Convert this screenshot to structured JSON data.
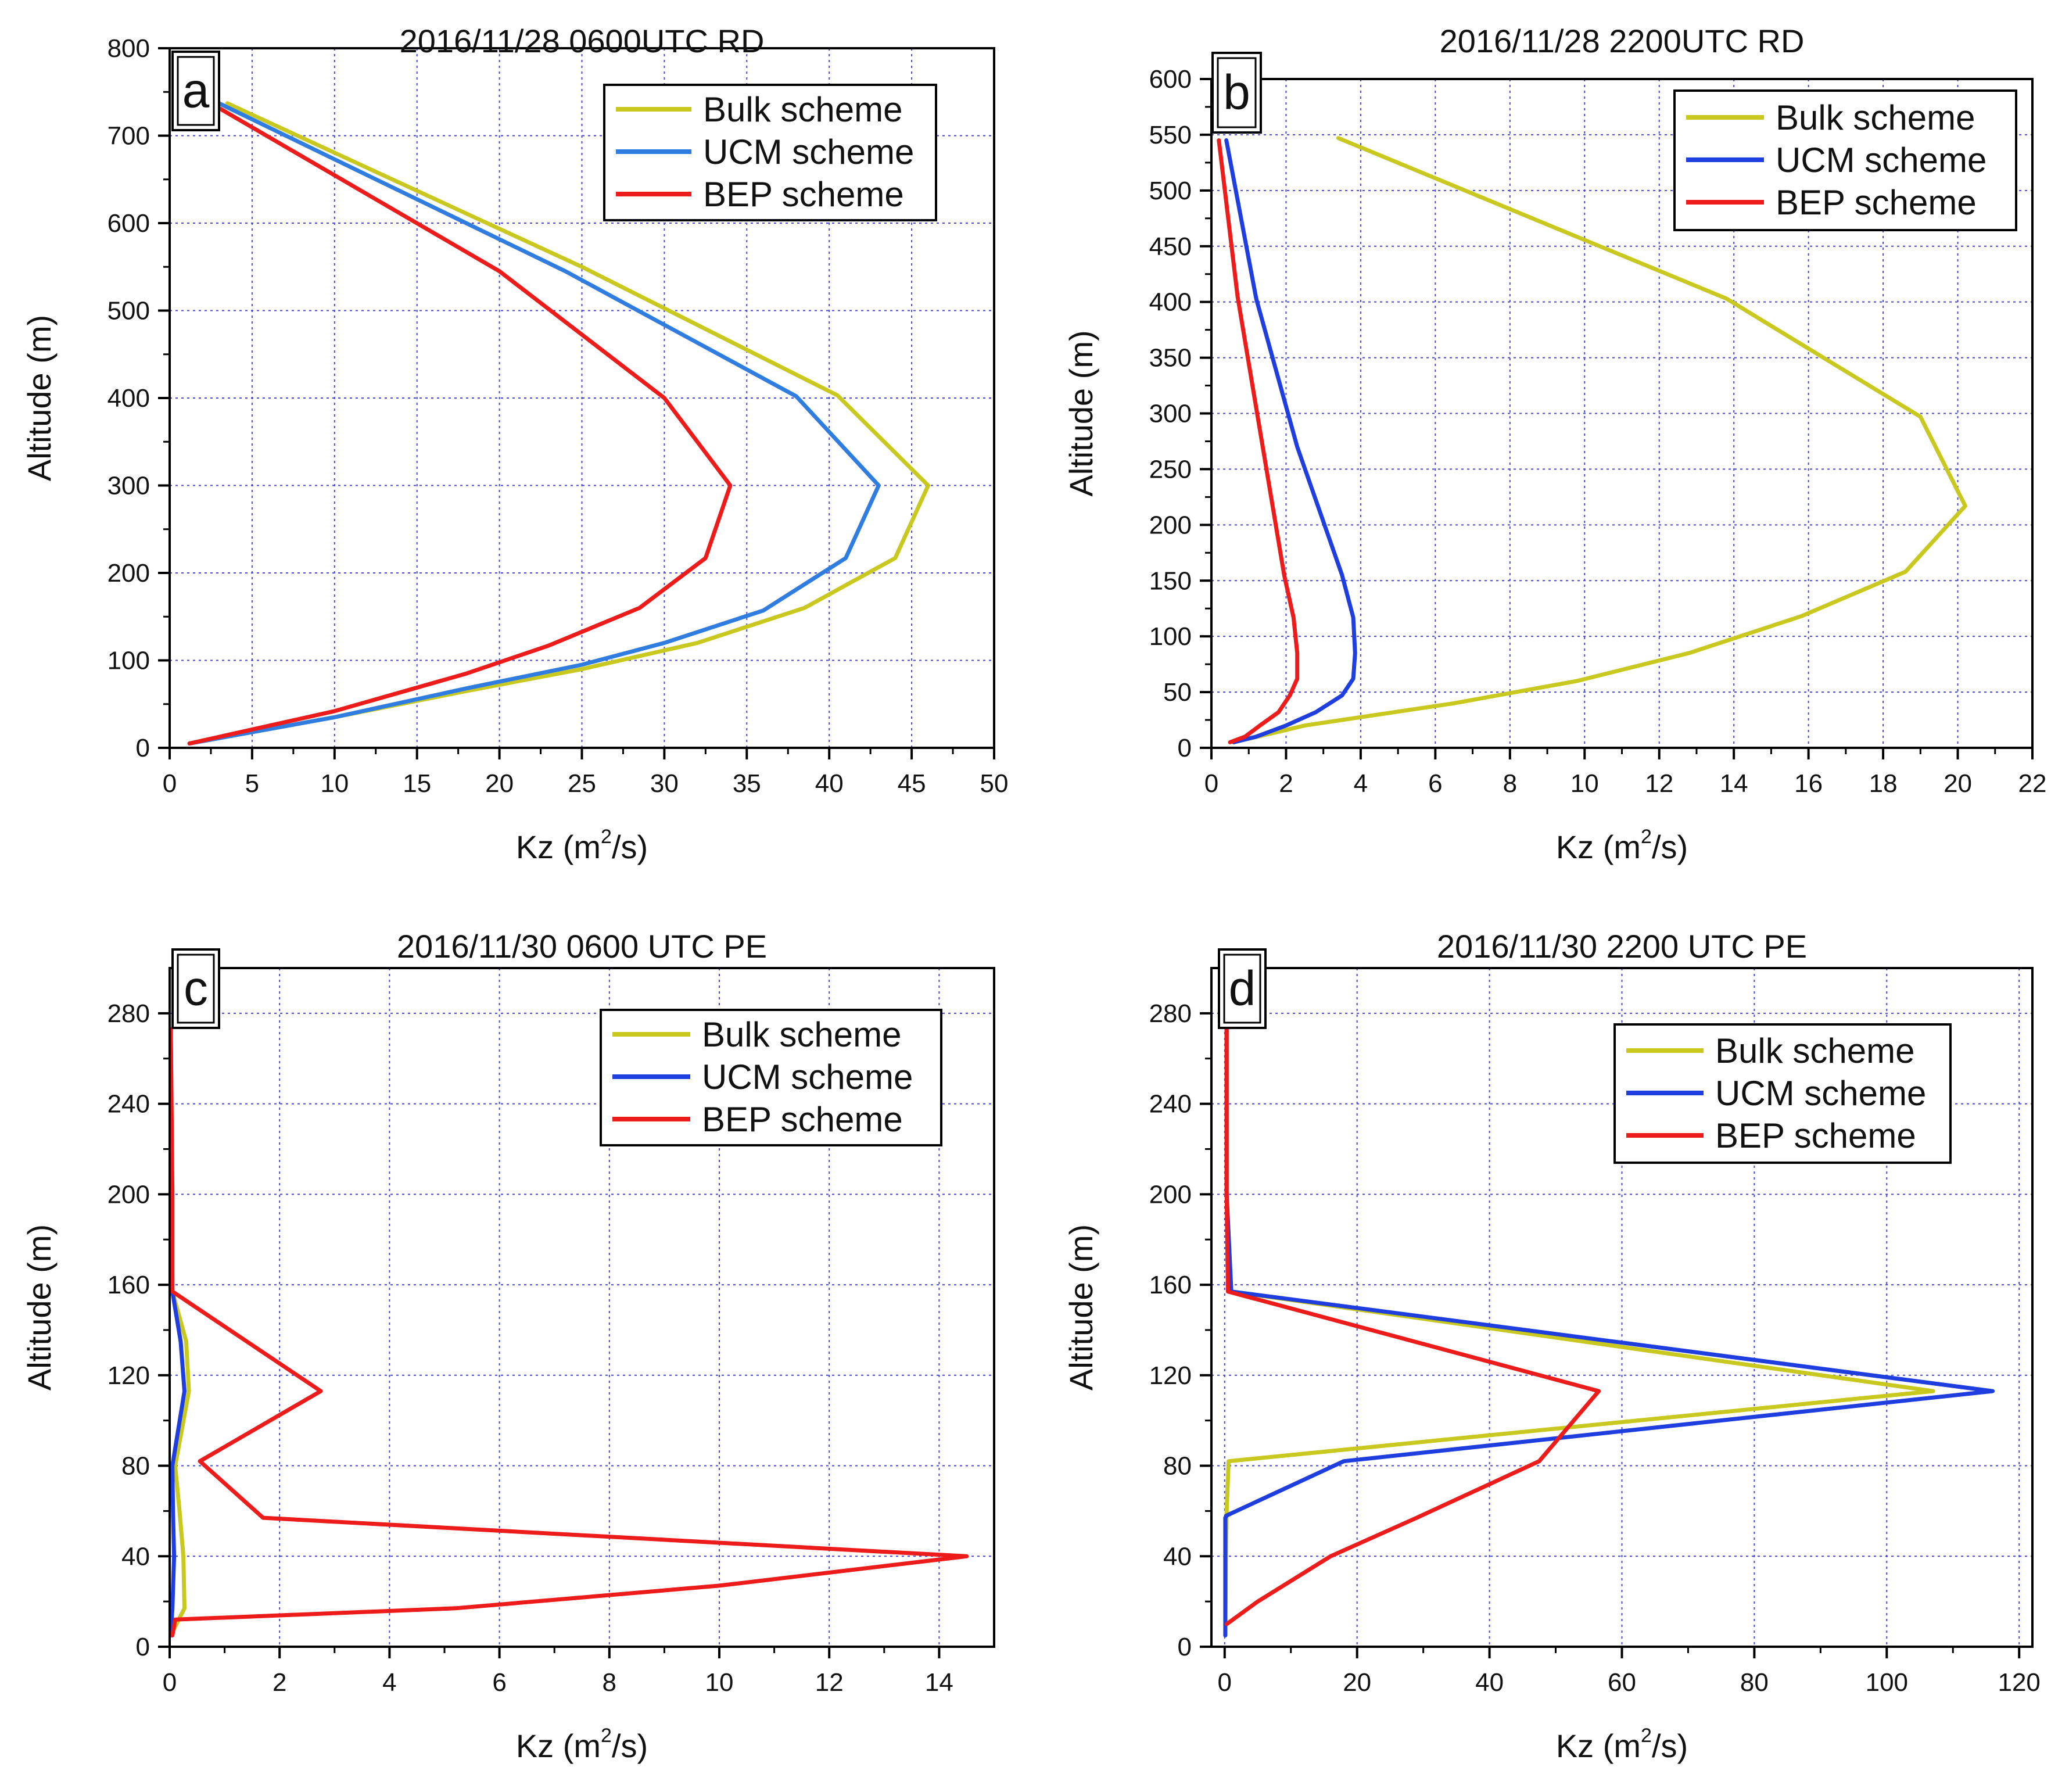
{
  "colors": {
    "bulk": "#c8c81e",
    "ucm_ab": "#2f7de0",
    "ucm_cd": "#1f3ee0",
    "bep": "#ee1b1b",
    "grid": "#4646d8"
  },
  "chart_data": [
    {
      "type": "line",
      "letter": "a",
      "title": "2016/11/28 0600UTC RD",
      "xlabel": "Kz (m",
      "xlabel_sup": "2",
      "xlabel_tail": "/s)",
      "ylabel": "Altitude (m)",
      "xlim": [
        0,
        50
      ],
      "ylim": [
        0,
        800
      ],
      "xticks": [
        0,
        5,
        10,
        15,
        20,
        25,
        30,
        35,
        40,
        45,
        50
      ],
      "yticks": [
        0,
        100,
        200,
        300,
        400,
        500,
        600,
        700,
        800
      ],
      "xtick_labels": [
        "0",
        "5",
        "10",
        "15",
        "20",
        "25",
        "30",
        "35",
        "40",
        "45",
        "50"
      ],
      "ytick_labels": [
        "0",
        "100",
        "200",
        "300",
        "400",
        "500",
        "600",
        "700",
        "800"
      ],
      "grid": true,
      "legend_position": "top-right",
      "series": [
        {
          "name": "Bulk scheme",
          "color_key": "bulk",
          "x": [
            1.2,
            10,
            18,
            25,
            32,
            38.5,
            44,
            46,
            40.5,
            25,
            3.5
          ],
          "y": [
            5,
            35,
            65,
            90,
            120,
            160,
            217,
            300,
            403,
            550,
            737
          ]
        },
        {
          "name": "UCM scheme",
          "color_key": "ucm_ab",
          "x": [
            1.2,
            10,
            18,
            25,
            30,
            36,
            41,
            43,
            38,
            24,
            3
          ],
          "y": [
            5,
            35,
            68,
            95,
            120,
            157,
            217,
            300,
            402,
            545,
            737
          ]
        },
        {
          "name": "BEP scheme",
          "color_key": "bep",
          "x": [
            1.2,
            10,
            18,
            23,
            28.5,
            32.5,
            34,
            30,
            20,
            2.5
          ],
          "y": [
            5,
            42,
            85,
            117,
            160,
            217,
            300,
            400,
            545,
            737
          ]
        }
      ]
    },
    {
      "type": "line",
      "letter": "b",
      "title": "2016/11/28 2200UTC RD",
      "xlabel": "Kz (m",
      "xlabel_sup": "2",
      "xlabel_tail": "/s)",
      "ylabel": "Altitude (m)",
      "xlim": [
        0,
        22
      ],
      "ylim": [
        0,
        600
      ],
      "xticks": [
        0,
        2,
        4,
        6,
        8,
        10,
        12,
        14,
        16,
        18,
        20,
        22
      ],
      "yticks": [
        0,
        50,
        100,
        150,
        200,
        250,
        300,
        350,
        400,
        450,
        500,
        550,
        600
      ],
      "xtick_labels": [
        "0",
        "2",
        "4",
        "6",
        "8",
        "10",
        "12",
        "14",
        "16",
        "18",
        "20",
        "22"
      ],
      "ytick_labels": [
        "0",
        "50",
        "100",
        "150",
        "200",
        "250",
        "300",
        "350",
        "400",
        "450",
        "500",
        "550",
        "600"
      ],
      "grid": true,
      "legend_position": "top-right",
      "series": [
        {
          "name": "Bulk scheme",
          "color_key": "bulk",
          "x": [
            0.6,
            2.5,
            6.5,
            9.8,
            12.8,
            15.8,
            18.6,
            20.2,
            19,
            13.8,
            3.4
          ],
          "y": [
            5,
            20,
            40,
            60,
            85,
            118,
            158,
            217,
            297,
            403,
            547
          ]
        },
        {
          "name": "UCM scheme",
          "color_key": "ucm_cd",
          "x": [
            0.6,
            1.2,
            2,
            2.8,
            3.5,
            3.8,
            3.85,
            3.8,
            3.5,
            2.3,
            1.2,
            0.4
          ],
          "y": [
            5,
            10,
            20,
            32,
            47,
            62,
            85,
            117,
            155,
            270,
            403,
            545
          ]
        },
        {
          "name": "BEP scheme",
          "color_key": "bep",
          "x": [
            0.5,
            0.9,
            1.3,
            1.8,
            2.1,
            2.3,
            2.3,
            2.2,
            1.95,
            1.3,
            0.7,
            0.2
          ],
          "y": [
            5,
            10,
            20,
            32,
            47,
            62,
            85,
            117,
            155,
            285,
            405,
            545
          ]
        }
      ]
    },
    {
      "type": "line",
      "letter": "c",
      "title": "2016/11/30 0600 UTC PE",
      "xlabel": "Kz (m",
      "xlabel_sup": "2",
      "xlabel_tail": "/s)",
      "ylabel": "Altitude (m)",
      "xlim": [
        0,
        15
      ],
      "ylim": [
        0,
        300
      ],
      "xticks": [
        0,
        2,
        4,
        6,
        8,
        10,
        12,
        14
      ],
      "yticks": [
        0,
        40,
        80,
        120,
        160,
        200,
        240,
        280
      ],
      "xtick_labels": [
        "0",
        "2",
        "4",
        "6",
        "8",
        "10",
        "12",
        "14"
      ],
      "ytick_labels": [
        "0",
        "40",
        "80",
        "120",
        "160",
        "200",
        "240",
        "280"
      ],
      "grid": true,
      "legend_position": "top-right",
      "series": [
        {
          "name": "Bulk scheme",
          "color_key": "bulk",
          "x": [
            0.02,
            0.27,
            0.25,
            0.18,
            0.1,
            0.35,
            0.3,
            0.05,
            0.02
          ],
          "y": [
            5,
            17,
            40,
            60,
            80,
            113,
            135,
            157,
            273
          ]
        },
        {
          "name": "UCM scheme",
          "color_key": "ucm_cd",
          "x": [
            0.02,
            0.05,
            0.08,
            0.06,
            0.05,
            0.27,
            0.2,
            0.05,
            0.02
          ],
          "y": [
            5,
            17,
            40,
            60,
            80,
            113,
            135,
            157,
            273
          ]
        },
        {
          "name": "BEP scheme",
          "color_key": "bep",
          "x": [
            0.05,
            0.1,
            5.2,
            10,
            14.5,
            1.7,
            0.55,
            2.75,
            0.05,
            0.05,
            0.02
          ],
          "y": [
            5,
            12,
            17,
            27,
            40,
            57,
            82,
            113,
            157,
            200,
            273
          ]
        }
      ]
    },
    {
      "type": "line",
      "letter": "d",
      "title": "2016/11/30 2200 UTC PE",
      "xlabel": "Kz (m",
      "xlabel_sup": "2",
      "xlabel_tail": "/s)",
      "ylabel": "Altitude (m)",
      "xlim": [
        -2,
        122
      ],
      "ylim": [
        0,
        300
      ],
      "xticks": [
        0,
        20,
        40,
        60,
        80,
        100,
        120
      ],
      "yticks": [
        0,
        40,
        80,
        120,
        160,
        200,
        240,
        280
      ],
      "xtick_labels": [
        "0",
        "20",
        "40",
        "60",
        "80",
        "100",
        "120"
      ],
      "ytick_labels": [
        "0",
        "40",
        "80",
        "120",
        "160",
        "200",
        "240",
        "280"
      ],
      "grid": true,
      "legend_position": "top-right",
      "series": [
        {
          "name": "Bulk scheme",
          "color_key": "bulk",
          "x": [
            0.1,
            0.2,
            0.3,
            0.6,
            107,
            1.0,
            0.3,
            0.3
          ],
          "y": [
            5,
            40,
            60,
            82,
            113,
            157,
            200,
            300
          ]
        },
        {
          "name": "UCM scheme",
          "color_key": "ucm_cd",
          "x": [
            0.1,
            0.1,
            0.1,
            0.3,
            18,
            116,
            1.0,
            0.3,
            0.3
          ],
          "y": [
            5,
            40,
            57,
            58,
            82,
            113,
            157,
            200,
            300
          ]
        },
        {
          "name": "BEP scheme",
          "color_key": "bep",
          "x": [
            0.3,
            5,
            16,
            29,
            47.5,
            56.5,
            0.5,
            0.3,
            0.3
          ],
          "y": [
            10,
            20,
            40,
            57,
            82,
            113,
            157,
            200,
            300
          ]
        }
      ]
    }
  ]
}
